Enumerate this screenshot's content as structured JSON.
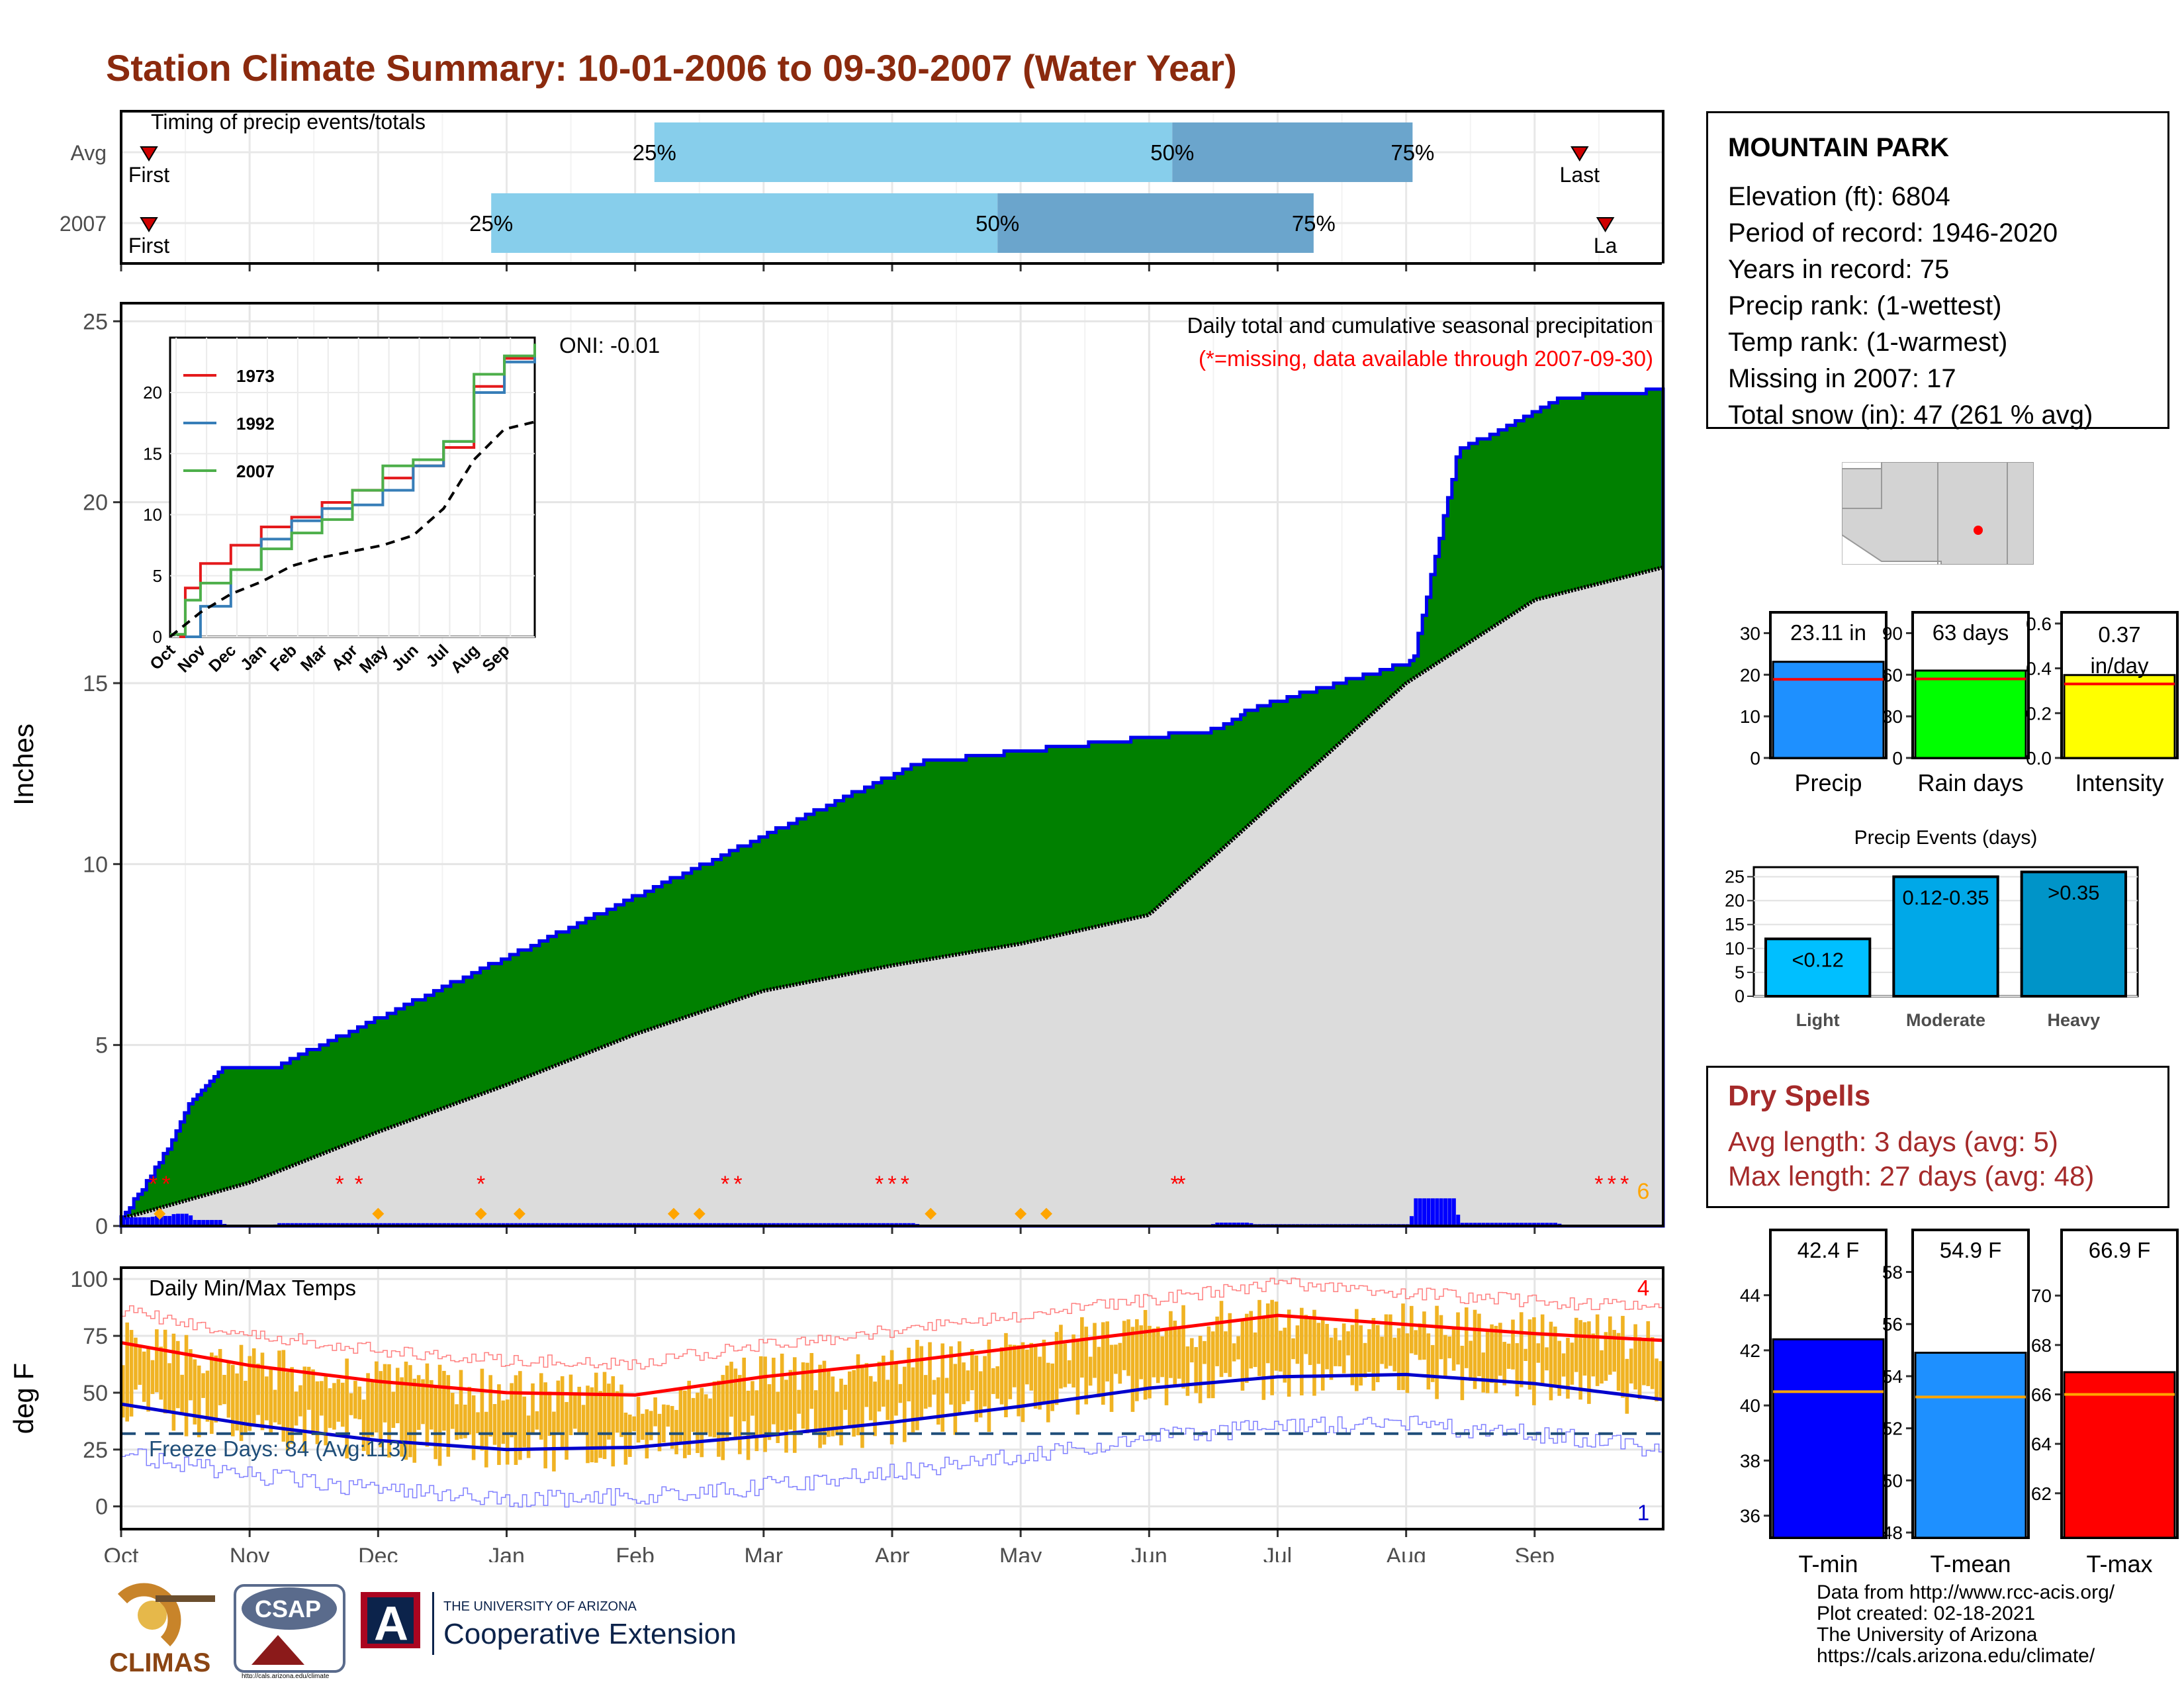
{
  "title": "Station Climate Summary: 10-01-2006 to 09-30-2007 (Water Year)",
  "timing": {
    "label": "Timing of precip events/totals",
    "rows": [
      "Avg",
      "2007"
    ],
    "first_label": "First",
    "last_label": "Last",
    "last_label_cut": "La",
    "pct_labels": [
      "25%",
      "50%",
      "75%"
    ],
    "avg": {
      "first": 0.1,
      "p25": 4.15,
      "p50": 8.18,
      "p75": 10.05,
      "last": 11.35
    },
    "y2007": {
      "first": -0.05,
      "p25": 2.88,
      "p50": 6.82,
      "p75": 9.28,
      "last": 11.55
    }
  },
  "station": {
    "name": "MOUNTAIN PARK",
    "lines": [
      "Elevation (ft): 6804",
      "Period of record: 1946-2020",
      "Years in record: 75",
      "Precip rank:  (1-wettest)",
      "Temp rank:  (1-warmest)",
      "Missing in 2007: 17",
      "Total snow (in): 47 (261 % avg)"
    ]
  },
  "month_labels": [
    "Oct",
    "Nov",
    "Dec",
    "Jan",
    "Feb",
    "Mar",
    "Apr",
    "May",
    "Jun",
    "Jul",
    "Aug",
    "Sep"
  ],
  "main": {
    "ylabel": "Inches",
    "ticks": [
      0,
      5,
      10,
      15,
      20,
      25
    ],
    "ylim": [
      0,
      25.5
    ],
    "caption": "Daily total and cumulative seasonal precipitation",
    "missing_note": "(*=missing, data available through 2007-09-30)",
    "oni": "ONI: -0.01",
    "corner_count": "6"
  },
  "inset": {
    "ticks": [
      0,
      5,
      10,
      15,
      20
    ],
    "month_labels": [
      "Oct",
      "Nov",
      "Dec",
      "Jan",
      "Feb",
      "Mar",
      "Apr",
      "May",
      "Jun",
      "Jul",
      "Aug",
      "Sep"
    ],
    "legend": [
      {
        "name": "1973",
        "color": "#e41a1c"
      },
      {
        "name": "1992",
        "color": "#377eb8"
      },
      {
        "name": "2007",
        "color": "#4daf4a"
      }
    ]
  },
  "temp": {
    "ylabel": "deg F",
    "ticks": [
      0,
      25,
      50,
      75,
      100
    ],
    "title": "Daily Min/Max Temps",
    "freeze": "Freeze Days: 84 (Avg:113)",
    "freeze_line": 32,
    "top_count": "4",
    "bottom_count": "1"
  },
  "bars_precip": {
    "title": "",
    "boxes": [
      "23.11 in",
      "63 days",
      "0.37 in/day"
    ],
    "labels": [
      "Precip",
      "Rain days",
      "Intensity"
    ],
    "panels": [
      {
        "ticks": [
          0,
          10,
          20,
          30
        ],
        "ticklabels": [
          "0",
          "10",
          "20",
          "30"
        ],
        "max": 35,
        "value": 23.11,
        "avg": 18.9,
        "color": "#1e90ff"
      },
      {
        "ticks": [
          0,
          30,
          60,
          90
        ],
        "ticklabels": [
          "0",
          "30",
          "60",
          "90"
        ],
        "max": 105,
        "value": 63,
        "avg": 57,
        "color": "#00ff00"
      },
      {
        "ticks": [
          0,
          0.2,
          0.4,
          0.6
        ],
        "ticklabels": [
          "0.0",
          "0.2",
          "0.4",
          "0.6"
        ],
        "max": 0.65,
        "value": 0.37,
        "avg": 0.33,
        "color": "#ffff00"
      }
    ]
  },
  "events": {
    "title": "Precip Events (days)",
    "ticks": [
      0,
      5,
      10,
      15,
      20,
      25
    ],
    "categories": [
      "Light",
      "Moderate",
      "Heavy"
    ],
    "values": [
      12,
      25,
      26
    ],
    "labels": [
      "<0.12",
      "0.12-0.35",
      ">0.35"
    ],
    "colors": [
      "#00bfff",
      "#00a8e8",
      "#0094c8"
    ]
  },
  "dry": {
    "title": "Dry Spells",
    "avg_line": "Avg length: 3 days (avg: 5)",
    "max_line": "Max length: 27 days (avg: 48)"
  },
  "temp_bars": {
    "labels": [
      "T-min",
      "T-mean",
      "T-max"
    ],
    "boxes": [
      "42.4 F",
      "54.9 F",
      "66.9 F"
    ],
    "panels": [
      {
        "ticks": [
          36,
          38,
          40,
          42,
          44
        ],
        "min": 35.2,
        "max": 45.6,
        "value": 42.4,
        "avg": 40.5,
        "color": "#0000ff"
      },
      {
        "ticks": [
          48,
          50,
          52,
          54,
          56,
          58
        ],
        "min": 47.8,
        "max": 58.8,
        "value": 54.9,
        "avg": 53.2,
        "color": "#1e90ff"
      },
      {
        "ticks": [
          62,
          64,
          66,
          68,
          70
        ],
        "min": 60.2,
        "max": 71.8,
        "value": 66.9,
        "avg": 66.0,
        "color": "#ff0000"
      }
    ]
  },
  "logos": {
    "climas": "CLIMAS",
    "csap": "CSAP",
    "ua_line1": "THE UNIVERSITY OF ARIZONA",
    "ua_line2": "Cooperative Extension",
    "ua_letter": "A",
    "csap_url": "http://cals.arizona.edu/climate"
  },
  "credits": [
    "Data from http://www.rcc-acis.org/",
    "Plot created: 02-18-2021",
    "The University of Arizona",
    "https://cals.arizona.edu/climate/"
  ],
  "chart_data": {
    "type": "area",
    "title": "Station Climate Summary: 10-01-2006 to 09-30-2007 (Water Year)",
    "xlabel": "",
    "ylabel": "Inches",
    "x_unit": "month of water year",
    "ylim": [
      0,
      25
    ],
    "series": [
      {
        "name": "2007",
        "x": [
          0,
          0.25,
          0.4,
          0.55,
          0.8,
          1.2,
          6.2,
          8.5,
          8.8,
          10.05,
          10.4,
          11.2,
          12.0
        ],
        "y": [
          0.2,
          1.5,
          2.4,
          3.5,
          4.4,
          4.4,
          12.8,
          13.7,
          14.3,
          15.6,
          21.4,
          22.9,
          23.1
        ]
      },
      {
        "name": "",
        "x": [
          0,
          1,
          2,
          3,
          4,
          5,
          6,
          7,
          8,
          9,
          10,
          11,
          12
        ],
        "y": [
          0.2,
          1.2,
          2.6,
          3.9,
          5.3,
          6.5,
          7.2,
          7.8,
          8.6,
          11.8,
          15.0,
          17.3,
          18.2
        ]
      }
    ],
    "temperature": {
      "ylim": [
        -10,
        100
      ],
      "series": [
        {
          "name": "",
          "months": [
            0,
            1,
            2,
            3,
            4,
            5,
            6,
            7,
            8,
            9,
            10,
            11,
            12
          ],
          "values": [
            72,
            62,
            55,
            50,
            49,
            57,
            63,
            70,
            77,
            84,
            80,
            76,
            73
          ]
        },
        {
          "name": "",
          "months": [
            0,
            1,
            2,
            3,
            4,
            5,
            6,
            7,
            8,
            9,
            10,
            11,
            12
          ],
          "values": [
            45,
            36,
            29,
            25,
            26,
            31,
            37,
            44,
            52,
            57,
            58,
            54,
            47
          ]
        }
      ]
    }
  }
}
